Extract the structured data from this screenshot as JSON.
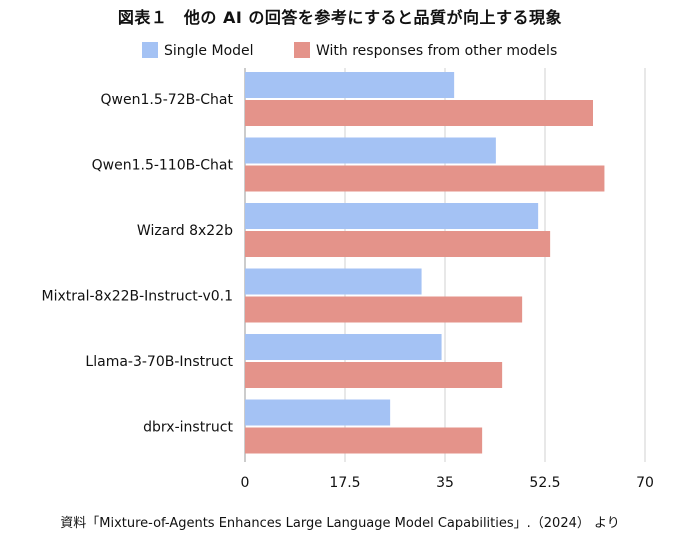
{
  "header": {
    "title": "図表１　他の AI の回答を参考にすると品質が向上する現象"
  },
  "footer": {
    "source": "資料「Mixture-of-Agents Enhances Large Language Model Capabilities」.（2024） より"
  },
  "colors": {
    "single": "#a4c2f4",
    "with_responses": "#e4938a",
    "grid": "#d0d0d0"
  },
  "chart_data": {
    "type": "bar",
    "orientation": "horizontal",
    "categories": [
      "Qwen1.5-72B-Chat",
      "Qwen1.5-110B-Chat",
      "Wizard 8x22b",
      "Mixtral-8x22B-Instruct-v0.1",
      "Llama-3-70B-Instruct",
      "dbrx-instruct"
    ],
    "series": [
      {
        "name": "Single Model",
        "values": [
          36.6,
          43.9,
          51.3,
          30.9,
          34.4,
          25.4
        ]
      },
      {
        "name": "With responses from other models",
        "values": [
          60.9,
          62.9,
          53.4,
          48.5,
          45.0,
          41.5
        ]
      }
    ],
    "xlim": [
      0,
      70
    ],
    "xticks": [
      "0",
      "17.5",
      "35",
      "52.5",
      "70"
    ],
    "grid": true,
    "legend": "top"
  }
}
